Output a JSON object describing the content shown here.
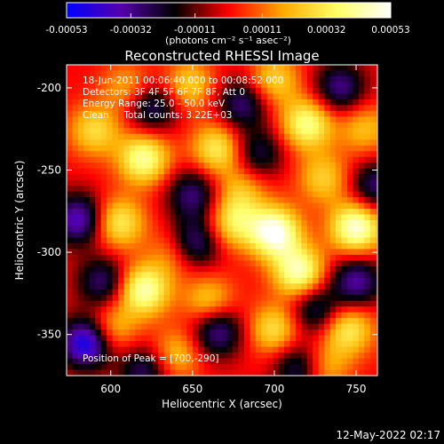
{
  "chart_data": {
    "type": "heatmap",
    "title": "Reconstructed RHESSI Image",
    "xlabel": "Heliocentric X (arcsec)",
    "ylabel": "Heliocentric Y (arcsec)",
    "xlim": [
      573,
      763
    ],
    "ylim": [
      -375,
      -186
    ],
    "x_ticks": [
      600,
      650,
      700,
      750
    ],
    "y_ticks": [
      -200,
      -250,
      -300,
      -350
    ],
    "colorbar": {
      "min": -0.00053,
      "max": 0.00053,
      "tick_values": [
        -0.00053,
        -0.00032,
        -0.00011,
        0.00011,
        0.00032,
        0.00053
      ],
      "tick_labels": [
        "-0.00053",
        "-0.00032",
        "-0.00011",
        "0.00011",
        "0.00032",
        "0.00053"
      ],
      "unit_label": "(photons cm⁻² s⁻¹ asec⁻²)",
      "colors": [
        "#0000ff",
        "#5500aa",
        "#000000",
        "#ff0000",
        "#ffaa00",
        "#ffff66",
        "#ffffff"
      ]
    },
    "annotations": [
      "18-Jun-2011 00:06:40.000 to 00:08:52.000",
      "Detectors: 3F 4F 5F 6F 7F 8F, Att 0",
      "Energy Range: 25.0 - 50.0 keV",
      "Clean     Total counts: 3.22E+03"
    ],
    "peak_label": "Position of Peak = [700,-290]",
    "peak": [
      700,
      -290
    ],
    "hot_spots": [
      {
        "x": 700,
        "y": -288,
        "value": 0.00053
      },
      {
        "x": 750,
        "y": -285,
        "value": 0.0005
      },
      {
        "x": 715,
        "y": -312,
        "value": 0.00045
      },
      {
        "x": 620,
        "y": -323,
        "value": 0.00045
      },
      {
        "x": 620,
        "y": -243,
        "value": 0.00042
      },
      {
        "x": 720,
        "y": -222,
        "value": 0.0004
      },
      {
        "x": 665,
        "y": -237,
        "value": 0.00033
      },
      {
        "x": 605,
        "y": -282,
        "value": 0.00033
      },
      {
        "x": 675,
        "y": -282,
        "value": 0.0003
      },
      {
        "x": 745,
        "y": -347,
        "value": 0.00033
      },
      {
        "x": 700,
        "y": -347,
        "value": 0.0003
      },
      {
        "x": 590,
        "y": -226,
        "value": 0.00028
      },
      {
        "x": 648,
        "y": -198,
        "value": 0.00025
      },
      {
        "x": 700,
        "y": -195,
        "value": 0.00026
      },
      {
        "x": 660,
        "y": -330,
        "value": 0.00026
      },
      {
        "x": 600,
        "y": -347,
        "value": 0.00025
      },
      {
        "x": 730,
        "y": -255,
        "value": 0.00025
      },
      {
        "x": 640,
        "y": -300,
        "value": 0.00022
      },
      {
        "x": 640,
        "y": -362,
        "value": 0.00023
      },
      {
        "x": 610,
        "y": -200,
        "value": 0.0002
      },
      {
        "x": 755,
        "y": -225,
        "value": 0.00022
      },
      {
        "x": 680,
        "y": -262,
        "value": 0.0002
      },
      {
        "x": 730,
        "y": -370,
        "value": 0.00022
      }
    ],
    "cold_spots": [
      {
        "x": 585,
        "y": -355,
        "value": -0.00053
      },
      {
        "x": 580,
        "y": -280,
        "value": -0.0004
      },
      {
        "x": 650,
        "y": -295,
        "value": -0.00038
      },
      {
        "x": 625,
        "y": -212,
        "value": -0.0003
      },
      {
        "x": 680,
        "y": -210,
        "value": -0.0003
      },
      {
        "x": 750,
        "y": -318,
        "value": -0.00035
      },
      {
        "x": 665,
        "y": -348,
        "value": -0.00035
      },
      {
        "x": 595,
        "y": -318,
        "value": -0.0003
      },
      {
        "x": 715,
        "y": -370,
        "value": -0.0003
      },
      {
        "x": 740,
        "y": -200,
        "value": -0.00032
      },
      {
        "x": 650,
        "y": -265,
        "value": -0.0003
      },
      {
        "x": 762,
        "y": -260,
        "value": -0.0003
      },
      {
        "x": 725,
        "y": -335,
        "value": -0.00028
      },
      {
        "x": 620,
        "y": -372,
        "value": -0.00028
      },
      {
        "x": 690,
        "y": -240,
        "value": -0.00025
      }
    ]
  },
  "footer": {
    "timestamp": "12-May-2022 02:17"
  }
}
